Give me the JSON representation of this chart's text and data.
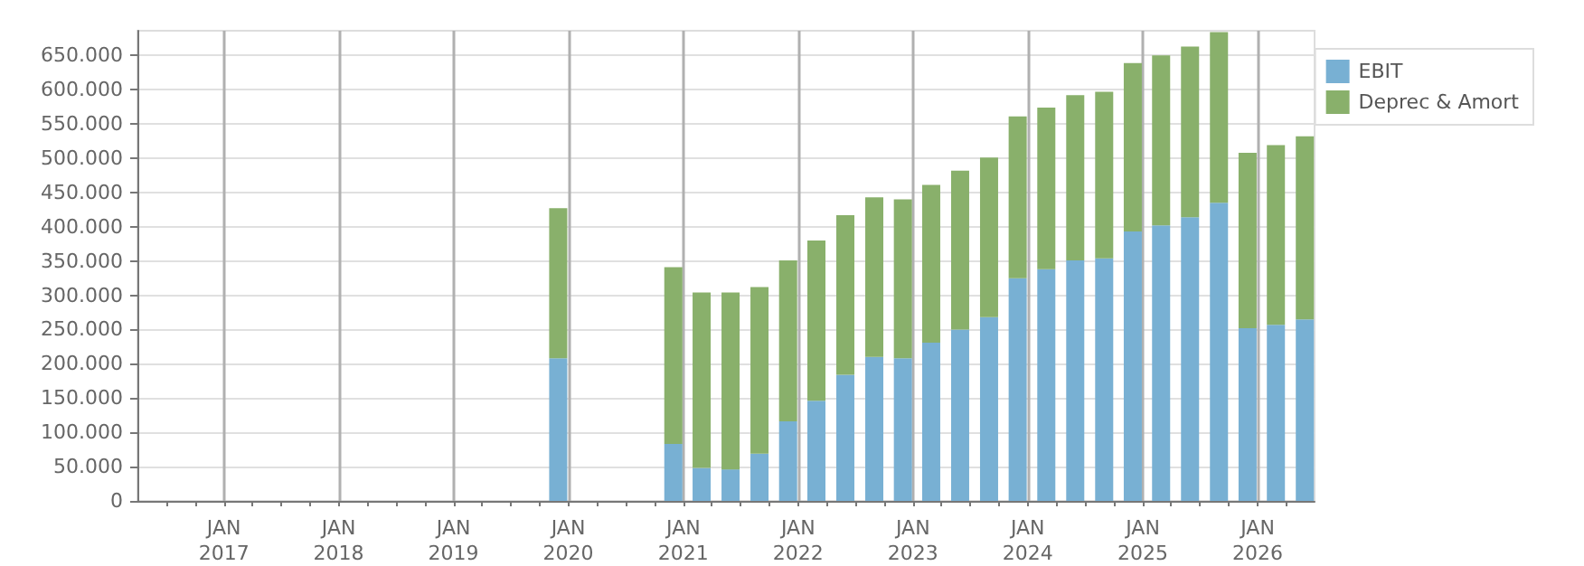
{
  "chart_data": {
    "type": "bar",
    "stacked": true,
    "x": [
      "2019-11-30",
      "2020-11-30",
      "2021-02-28",
      "2021-05-31",
      "2021-08-31",
      "2021-11-30",
      "2022-02-28",
      "2022-05-31",
      "2022-08-31",
      "2022-11-30",
      "2023-02-28",
      "2023-05-31",
      "2023-08-31",
      "2023-11-30",
      "2024-02-29",
      "2024-05-31",
      "2024-08-31",
      "2024-11-30",
      "2025-02-28",
      "2025-05-31",
      "2025-08-31",
      "2025-11-30",
      "2026-02-28",
      "2026-05-31"
    ],
    "series": [
      {
        "name": "EBIT",
        "color": "#78b0d3",
        "values": [
          208000,
          83000,
          48000,
          46000,
          69000,
          116000,
          146000,
          184000,
          210000,
          208000,
          231000,
          250000,
          268000,
          325000,
          338000,
          351000,
          354000,
          393000,
          402000,
          414000,
          435000,
          252000,
          257000,
          265000
        ]
      },
      {
        "name": "Deprec & Amort",
        "color": "#89b06b",
        "values": [
          219000,
          258000,
          256000,
          258000,
          243000,
          235000,
          234000,
          233000,
          233000,
          232000,
          230000,
          232000,
          233000,
          236000,
          236000,
          241000,
          243000,
          246000,
          248000,
          249000,
          249000,
          256000,
          262000,
          267000
        ]
      }
    ],
    "xlim": [
      "2016-04-01",
      "2026-07-01"
    ],
    "xticks": [
      {
        "value": "2016-07-01",
        "label": null
      },
      {
        "value": "2016-10-01",
        "label": null
      },
      {
        "value": "2017-01-01",
        "label": "JAN\n2017"
      },
      {
        "value": "2017-04-01",
        "label": null
      },
      {
        "value": "2017-07-01",
        "label": null
      },
      {
        "value": "2017-10-01",
        "label": null
      },
      {
        "value": "2018-01-01",
        "label": "JAN\n2018"
      },
      {
        "value": "2018-04-01",
        "label": null
      },
      {
        "value": "2018-07-01",
        "label": null
      },
      {
        "value": "2018-10-01",
        "label": null
      },
      {
        "value": "2019-01-01",
        "label": "JAN\n2019"
      },
      {
        "value": "2019-04-01",
        "label": null
      },
      {
        "value": "2019-07-01",
        "label": null
      },
      {
        "value": "2019-10-01",
        "label": null
      },
      {
        "value": "2020-01-01",
        "label": "JAN\n2020"
      },
      {
        "value": "2020-04-01",
        "label": null
      },
      {
        "value": "2020-07-01",
        "label": null
      },
      {
        "value": "2020-10-01",
        "label": null
      },
      {
        "value": "2021-01-01",
        "label": "JAN\n2021"
      },
      {
        "value": "2021-04-01",
        "label": null
      },
      {
        "value": "2021-07-01",
        "label": null
      },
      {
        "value": "2021-10-01",
        "label": null
      },
      {
        "value": "2022-01-01",
        "label": "JAN\n2022"
      },
      {
        "value": "2022-04-01",
        "label": null
      },
      {
        "value": "2022-07-01",
        "label": null
      },
      {
        "value": "2022-10-01",
        "label": null
      },
      {
        "value": "2023-01-01",
        "label": "JAN\n2023"
      },
      {
        "value": "2023-04-01",
        "label": null
      },
      {
        "value": "2023-07-01",
        "label": null
      },
      {
        "value": "2023-10-01",
        "label": null
      },
      {
        "value": "2024-01-01",
        "label": "JAN\n2024"
      },
      {
        "value": "2024-04-01",
        "label": null
      },
      {
        "value": "2024-07-01",
        "label": null
      },
      {
        "value": "2024-10-01",
        "label": null
      },
      {
        "value": "2025-01-01",
        "label": "JAN\n2025"
      },
      {
        "value": "2025-04-01",
        "label": null
      },
      {
        "value": "2025-07-01",
        "label": null
      },
      {
        "value": "2025-10-01",
        "label": null
      },
      {
        "value": "2026-01-01",
        "label": "JAN\n2026"
      },
      {
        "value": "2026-04-01",
        "label": null
      }
    ],
    "ylim": [
      0,
      686000
    ],
    "yticks": [
      0,
      {
        "value": 50000,
        "label": "50.000"
      },
      {
        "value": 100000,
        "label": "100.000"
      },
      {
        "value": 150000,
        "label": "150.000"
      },
      {
        "value": 200000,
        "label": "200.000"
      },
      {
        "value": 250000,
        "label": "250.000"
      },
      {
        "value": 300000,
        "label": "300.000"
      },
      {
        "value": 350000,
        "label": "350.000"
      },
      {
        "value": 400000,
        "label": "400.000"
      },
      {
        "value": 450000,
        "label": "450.000"
      },
      {
        "value": 500000,
        "label": "500.000"
      },
      {
        "value": 550000,
        "label": "550.000"
      },
      {
        "value": 600000,
        "label": "600.000"
      },
      {
        "value": 650000,
        "label": "650.000"
      }
    ],
    "grid": true,
    "legend": "top right"
  }
}
